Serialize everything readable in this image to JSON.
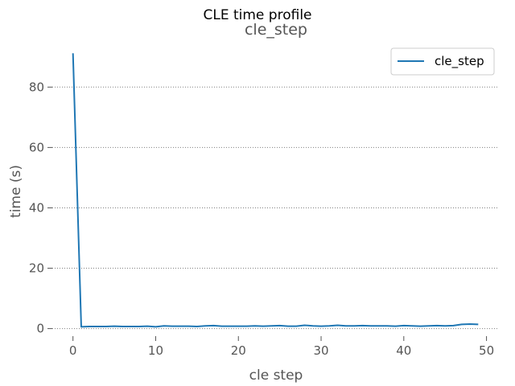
{
  "chart_data": {
    "type": "line",
    "suptitle": "CLE time profile",
    "title": "cle_step",
    "xlabel": "cle step",
    "ylabel": "time (s)",
    "xlim": [
      -2.5,
      51.5
    ],
    "ylim": [
      -2.5,
      95
    ],
    "xticks": [
      0,
      10,
      20,
      30,
      40,
      50
    ],
    "yticks": [
      0,
      20,
      40,
      60,
      80
    ],
    "grid": "horizontal dotted",
    "legend_position": "top-right",
    "series": [
      {
        "name": "cle_step",
        "color": "#1f77b4",
        "x": [
          0,
          1,
          2,
          3,
          4,
          5,
          6,
          7,
          8,
          9,
          10,
          11,
          12,
          13,
          14,
          15,
          16,
          17,
          18,
          19,
          20,
          21,
          22,
          23,
          24,
          25,
          26,
          27,
          28,
          29,
          30,
          31,
          32,
          33,
          34,
          35,
          36,
          37,
          38,
          39,
          40,
          41,
          42,
          43,
          44,
          45,
          46,
          47,
          48,
          49
        ],
        "values": [
          91.2,
          0.6,
          0.7,
          0.7,
          0.7,
          0.8,
          0.7,
          0.7,
          0.7,
          0.8,
          0.6,
          0.9,
          0.8,
          0.8,
          0.8,
          0.7,
          0.9,
          1.0,
          0.8,
          0.8,
          0.8,
          0.8,
          0.9,
          0.8,
          0.9,
          1.0,
          0.8,
          0.8,
          1.1,
          0.9,
          0.8,
          0.9,
          1.1,
          0.9,
          0.9,
          1.0,
          0.9,
          0.9,
          0.9,
          0.8,
          1.0,
          0.9,
          0.8,
          0.9,
          1.0,
          0.9,
          1.0,
          1.4,
          1.5,
          1.4
        ]
      }
    ]
  }
}
